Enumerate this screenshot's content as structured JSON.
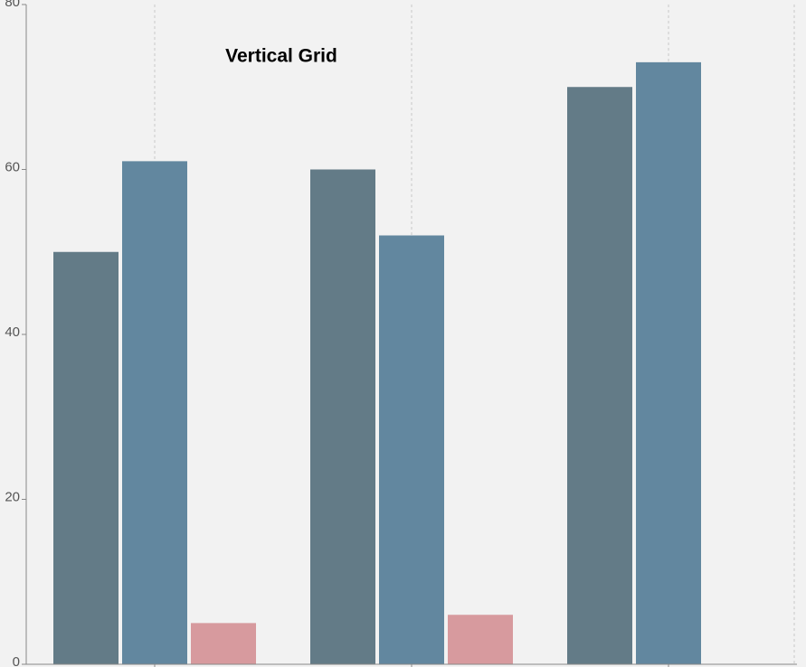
{
  "chart_data": {
    "type": "bar",
    "title": "Vertical Grid",
    "categories": [
      null,
      null,
      null
    ],
    "series": [
      {
        "color": "#637b87",
        "values": [
          50,
          60,
          70
        ]
      },
      {
        "color": "#62879f",
        "values": [
          61,
          52,
          73
        ]
      },
      {
        "color": "#d79a9e",
        "values": [
          5,
          6,
          null
        ]
      }
    ],
    "ylim": [
      0,
      80
    ],
    "yticks": [
      0,
      20,
      40,
      60,
      80
    ],
    "grid": "vertical"
  }
}
